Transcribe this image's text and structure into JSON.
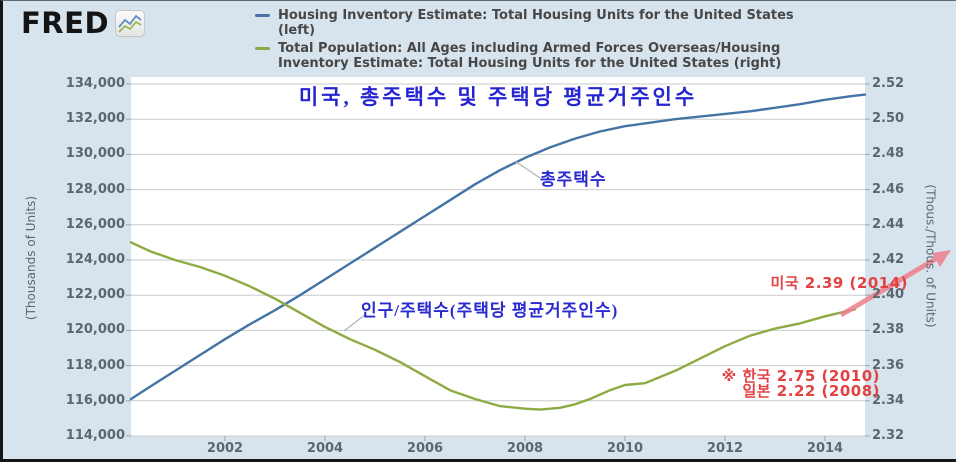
{
  "page": {
    "background": "#d8e4ed"
  },
  "logo": {
    "text": "FRED",
    "icon": "line-chart-icon"
  },
  "legend": {
    "items": [
      {
        "color": "#4474a6",
        "text": "Housing Inventory Estimate: Total Housing Units for the United States\n(left)"
      },
      {
        "color": "#8cab43",
        "text": "Total Population: All Ages including Armed Forces Overseas/Housing\nInventory Estimate: Total Housing Units for the United States (right)"
      }
    ]
  },
  "chart_data": {
    "type": "line",
    "title": "미국, 총주택수 및 주택당 평균거주인수",
    "title_color": "#2626d0",
    "grid": true,
    "legend_position": "top",
    "x_axis": {
      "range": [
        2000.12,
        2014.8
      ],
      "tick_labels": [
        "2002",
        "2004",
        "2006",
        "2008",
        "2010",
        "2012",
        "2014"
      ],
      "tick_values": [
        2002,
        2004,
        2006,
        2008,
        2010,
        2012,
        2014
      ]
    },
    "left_axis": {
      "label": "(Thousands of Units)",
      "range": [
        114000,
        134000
      ],
      "tick_labels": [
        "134,000",
        "132,000",
        "130,000",
        "128,000",
        "126,000",
        "124,000",
        "122,000",
        "120,000",
        "118,000",
        "116,000",
        "114,000"
      ],
      "tick_values": [
        134000,
        132000,
        130000,
        128000,
        126000,
        124000,
        122000,
        120000,
        118000,
        116000,
        114000
      ]
    },
    "right_axis": {
      "label": "(Thous./Thous. of Units)",
      "range": [
        2.32,
        2.52
      ],
      "tick_labels": [
        "2.52",
        "2.50",
        "2.48",
        "2.46",
        "2.44",
        "2.42",
        "2.40",
        "2.38",
        "2.36",
        "2.34",
        "2.32"
      ],
      "tick_values": [
        2.52,
        2.5,
        2.48,
        2.46,
        2.44,
        2.42,
        2.4,
        2.38,
        2.36,
        2.34,
        2.32
      ]
    },
    "series": [
      {
        "name": "Housing Inventory Estimate: Total Housing Units for the United States (left)",
        "axis": "left",
        "color": "#4474a6",
        "points": [
          [
            2000.12,
            116100
          ],
          [
            2000.5,
            116800
          ],
          [
            2001,
            117700
          ],
          [
            2001.5,
            118600
          ],
          [
            2002,
            119500
          ],
          [
            2002.5,
            120350
          ],
          [
            2003,
            121150
          ],
          [
            2003.5,
            122000
          ],
          [
            2004,
            122900
          ],
          [
            2004.5,
            123800
          ],
          [
            2005,
            124700
          ],
          [
            2005.5,
            125600
          ],
          [
            2006,
            126500
          ],
          [
            2006.5,
            127400
          ],
          [
            2007,
            128300
          ],
          [
            2007.5,
            129100
          ],
          [
            2008,
            129800
          ],
          [
            2008.5,
            130400
          ],
          [
            2009,
            130900
          ],
          [
            2009.5,
            131300
          ],
          [
            2010,
            131600
          ],
          [
            2010.5,
            131800
          ],
          [
            2011,
            132000
          ],
          [
            2011.5,
            132150
          ],
          [
            2012,
            132300
          ],
          [
            2012.5,
            132450
          ],
          [
            2013,
            132650
          ],
          [
            2013.5,
            132850
          ],
          [
            2014,
            133100
          ],
          [
            2014.5,
            133300
          ],
          [
            2014.8,
            133400
          ]
        ]
      },
      {
        "name": "Total Population / Housing Inventory Estimate (right)",
        "axis": "right",
        "color": "#8cab43",
        "points": [
          [
            2000.12,
            2.43
          ],
          [
            2000.5,
            2.425
          ],
          [
            2001,
            2.42
          ],
          [
            2001.5,
            2.416
          ],
          [
            2002,
            2.411
          ],
          [
            2002.5,
            2.405
          ],
          [
            2003,
            2.398
          ],
          [
            2003.5,
            2.39
          ],
          [
            2004,
            2.382
          ],
          [
            2004.5,
            2.375
          ],
          [
            2005,
            2.369
          ],
          [
            2005.5,
            2.362
          ],
          [
            2006,
            2.354
          ],
          [
            2006.5,
            2.346
          ],
          [
            2007,
            2.341
          ],
          [
            2007.5,
            2.337
          ],
          [
            2008,
            2.3355
          ],
          [
            2008.3,
            2.335
          ],
          [
            2008.7,
            2.336
          ],
          [
            2009,
            2.338
          ],
          [
            2009.3,
            2.341
          ],
          [
            2009.7,
            2.346
          ],
          [
            2010,
            2.349
          ],
          [
            2010.4,
            2.35
          ],
          [
            2011,
            2.357
          ],
          [
            2011.5,
            2.364
          ],
          [
            2012,
            2.371
          ],
          [
            2012.5,
            2.377
          ],
          [
            2013,
            2.381
          ],
          [
            2013.5,
            2.384
          ],
          [
            2014,
            2.388
          ],
          [
            2014.6,
            2.392
          ]
        ]
      }
    ],
    "annotations": {
      "series1_label": {
        "text": "총주택수",
        "color": "#2a2ad0"
      },
      "series2_label": {
        "text": "인구/주택수(주택당 평균거주인수)",
        "color": "#2a2ad0"
      },
      "us_note": {
        "text": "미국 2.39 (2014)",
        "color": "#e34242"
      },
      "korea_note": {
        "text": "※ 한국 2.75 (2010)",
        "color": "#e34242"
      },
      "japan_note": {
        "text": "일본 2.22 (2008)",
        "color": "#e34242"
      },
      "arrow_color": "#ee7e8c"
    }
  }
}
